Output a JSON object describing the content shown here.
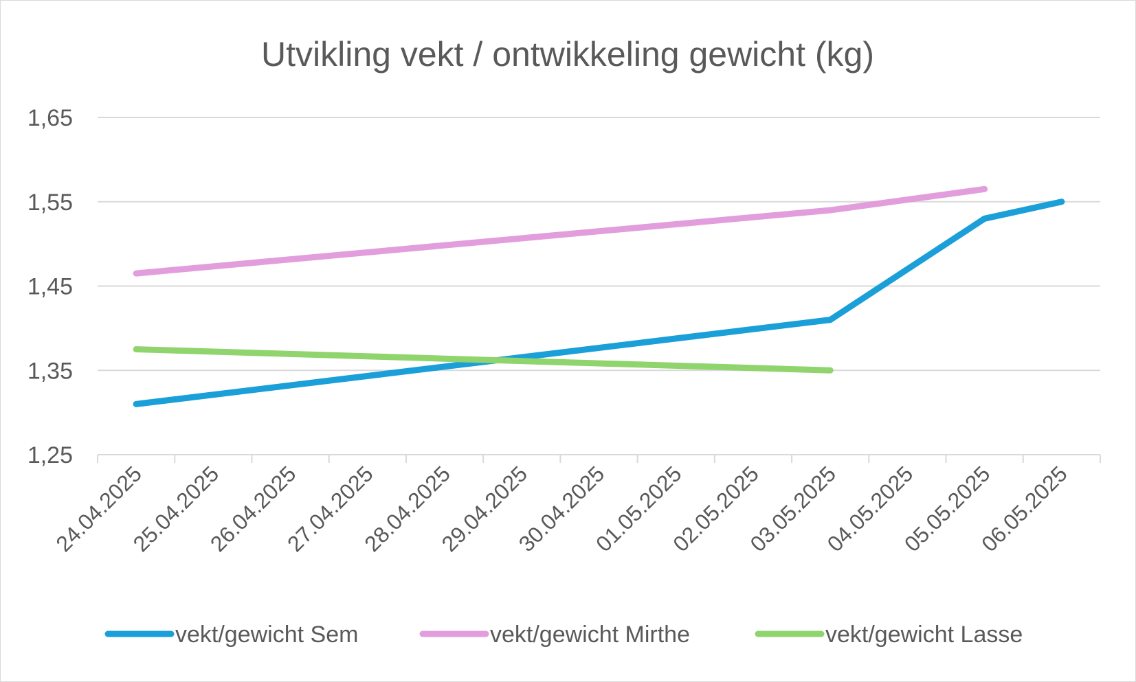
{
  "chart_data": {
    "type": "line",
    "title": "Utvikling vekt / ontwikkeling gewicht (kg)",
    "xlabel": "",
    "ylabel": "",
    "categories": [
      "24.04.2025",
      "25.04.2025",
      "26.04.2025",
      "27.04.2025",
      "28.04.2025",
      "29.04.2025",
      "30.04.2025",
      "01.05.2025",
      "02.05.2025",
      "03.05.2025",
      "04.05.2025",
      "05.05.2025",
      "06.05.2025"
    ],
    "y_ticks": [
      "1,25",
      "1,35",
      "1,45",
      "1,55",
      "1,65"
    ],
    "ylim": [
      1.25,
      1.65
    ],
    "grid": true,
    "legend_position": "bottom",
    "series": [
      {
        "name": "vekt/gewicht Sem",
        "color": "#1a9fd9",
        "points": [
          {
            "x": "24.04.2025",
            "y": 1.31
          },
          {
            "x": "03.05.2025",
            "y": 1.41
          },
          {
            "x": "05.05.2025",
            "y": 1.53
          },
          {
            "x": "06.05.2025",
            "y": 1.55
          }
        ]
      },
      {
        "name": "vekt/gewicht Mirthe",
        "color": "#e29ddd",
        "points": [
          {
            "x": "24.04.2025",
            "y": 1.465
          },
          {
            "x": "03.05.2025",
            "y": 1.54
          },
          {
            "x": "05.05.2025",
            "y": 1.565
          }
        ]
      },
      {
        "name": "vekt/gewicht Lasse",
        "color": "#8fd46c",
        "points": [
          {
            "x": "24.04.2025",
            "y": 1.375
          },
          {
            "x": "03.05.2025",
            "y": 1.35
          }
        ]
      }
    ]
  }
}
